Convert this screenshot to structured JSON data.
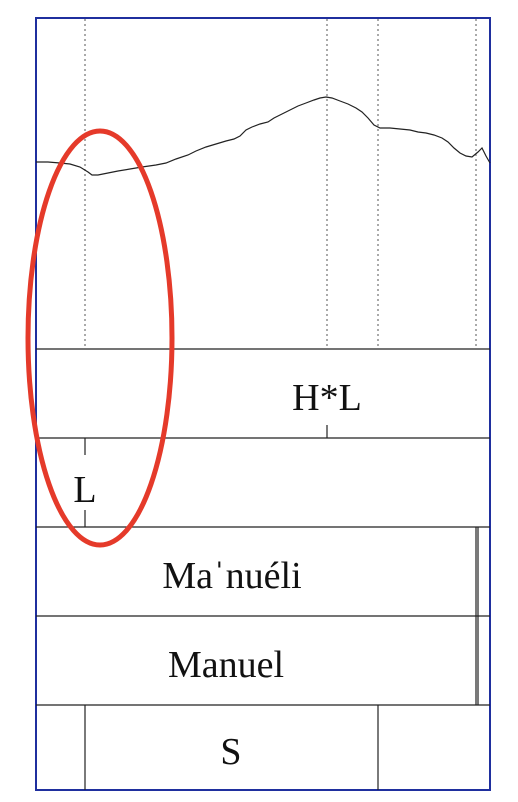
{
  "colors": {
    "frame": "#1f2f9e",
    "line": "#222222",
    "dotted": "#555555",
    "highlight": "#e53a2a"
  },
  "tiers": {
    "tone_tier_1": {
      "label": "H*L"
    },
    "tone_tier_2": {
      "label": "L"
    },
    "word_tier_1": {
      "label": "Maˈnuéli"
    },
    "word_tier_2": {
      "label": "Manuel"
    },
    "syllable_tier": {
      "label": "S"
    }
  },
  "highlight": {
    "shape": "ellipse",
    "target": "L"
  }
}
